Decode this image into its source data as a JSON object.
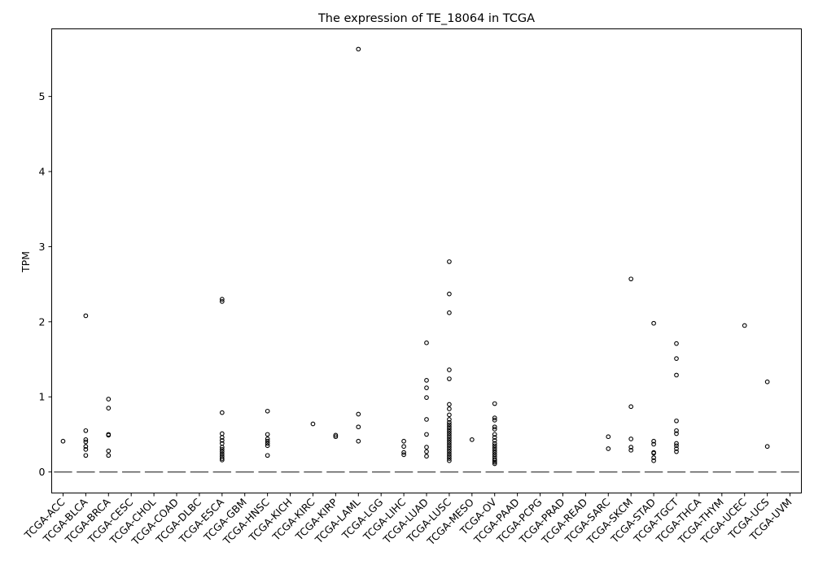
{
  "chart_data": {
    "type": "box",
    "title": "The expression of TE_18064 in TCGA",
    "xlabel": "",
    "ylabel": "TPM",
    "ylim": [
      -0.28,
      5.9
    ],
    "yticks": [
      0,
      1,
      2,
      3,
      4,
      5
    ],
    "grid": false,
    "colors": {
      "outlier": "#000000",
      "median": "#555555",
      "axis": "#000000",
      "background": "#ffffff"
    },
    "categories": [
      "TCGA-ACC",
      "TCGA-BLCA",
      "TCGA-BRCA",
      "TCGA-CESC",
      "TCGA-CHOL",
      "TCGA-COAD",
      "TCGA-DLBC",
      "TCGA-ESCA",
      "TCGA-GBM",
      "TCGA-HNSC",
      "TCGA-KICH",
      "TCGA-KIRC",
      "TCGA-KIRP",
      "TCGA-LAML",
      "TCGA-LGG",
      "TCGA-LIHC",
      "TCGA-LUAD",
      "TCGA-LUSC",
      "TCGA-MESO",
      "TCGA-OV",
      "TCGA-PAAD",
      "TCGA-PCPG",
      "TCGA-PRAD",
      "TCGA-READ",
      "TCGA-SARC",
      "TCGA-SKCM",
      "TCGA-STAD",
      "TCGA-TGCT",
      "TCGA-THCA",
      "TCGA-THYM",
      "TCGA-UCEC",
      "TCGA-UCS",
      "TCGA-UVM"
    ],
    "medians": [
      0,
      0,
      0,
      0,
      0,
      0,
      0,
      0,
      0,
      0,
      0,
      0,
      0,
      0,
      0,
      0,
      0,
      0,
      0,
      0,
      0,
      0,
      0,
      0,
      0,
      0,
      0,
      0,
      0,
      0,
      0,
      0,
      0
    ],
    "outliers": [
      [
        0.41
      ],
      [
        2.08,
        0.55,
        0.43,
        0.4,
        0.34,
        0.3,
        0.22
      ],
      [
        0.97,
        0.85,
        0.5,
        0.49,
        0.28,
        0.22
      ],
      [],
      [],
      [],
      [],
      [
        2.3,
        2.27,
        0.79,
        0.51,
        0.46,
        0.42,
        0.38,
        0.33,
        0.3,
        0.27,
        0.24,
        0.21,
        0.18,
        0.16
      ],
      [],
      [
        0.81,
        0.5,
        0.44,
        0.41,
        0.38,
        0.35,
        0.22
      ],
      [],
      [
        0.64
      ],
      [
        0.49,
        0.47
      ],
      [
        5.63,
        0.77,
        0.6,
        0.41
      ],
      [],
      [
        0.41,
        0.34,
        0.26,
        0.23
      ],
      [
        1.72,
        1.22,
        1.12,
        0.99,
        0.7,
        0.5,
        0.33,
        0.27,
        0.21
      ],
      [
        2.8,
        2.37,
        2.12,
        1.36,
        1.24,
        0.9,
        0.84,
        0.76,
        0.7,
        0.66,
        0.63,
        0.6,
        0.57,
        0.54,
        0.51,
        0.48,
        0.45,
        0.42,
        0.39,
        0.36,
        0.33,
        0.3,
        0.27,
        0.24,
        0.21,
        0.18,
        0.15
      ],
      [
        0.43
      ],
      [
        0.91,
        0.72,
        0.69,
        0.6,
        0.57,
        0.5,
        0.46,
        0.42,
        0.38,
        0.35,
        0.32,
        0.29,
        0.26,
        0.23,
        0.2,
        0.17,
        0.15,
        0.13,
        0.11
      ],
      [],
      [],
      [],
      [],
      [
        0.47,
        0.31
      ],
      [
        2.57,
        0.87,
        0.44,
        0.33,
        0.29
      ],
      [
        1.98,
        0.41,
        0.37,
        0.26,
        0.25,
        0.19,
        0.15
      ],
      [
        1.71,
        1.51,
        1.29,
        0.68,
        0.55,
        0.51,
        0.38,
        0.35,
        0.31,
        0.27
      ],
      [],
      [],
      [
        1.95
      ],
      [
        1.2,
        0.34
      ],
      []
    ]
  }
}
